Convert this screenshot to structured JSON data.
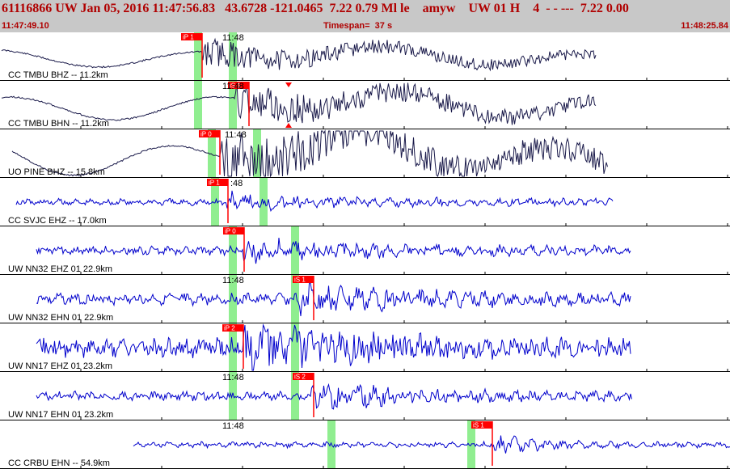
{
  "header": {
    "title": "61116866 UW Jan 05, 2016 11:47:56.83   43.6728 -121.0465  7.22 0.79 Ml le    amyw    UW 01 H    4  - - ---  7.22 0.00",
    "start_time": "11:47:49.10",
    "timespan": "Timespan=  37 s",
    "end_time": "11:48:25.84"
  },
  "colors": {
    "header_bg": "#c8c8c8",
    "header_text": "#b00000",
    "trace_black": "#1a1a4a",
    "trace_blue": "#0000cc",
    "pick_red": "#ff0000",
    "window_green": "#90ee90"
  },
  "panels": [
    {
      "label": "CC TMBU BHZ -- 11.2km",
      "time_label": "11:48",
      "trace_color": "black",
      "pick": "iP 1"
    },
    {
      "label": "CC TMBU BHN -- 11.2km",
      "time_label": "11:48",
      "trace_color": "black",
      "pick": "iS 1"
    },
    {
      "label": "UO PINE BHZ -- 15.8km",
      "time_label": "11:48",
      "trace_color": "black",
      "pick": "iP 0"
    },
    {
      "label": "CC SVJC EHZ -- 17.0km",
      "time_label": ":48",
      "trace_color": "blue",
      "pick": "iP 1"
    },
    {
      "label": "UW NN32 EHZ 01 22.9km",
      "time_label": "",
      "trace_color": "blue",
      "pick": "iP 0"
    },
    {
      "label": "UW NN32 EHN 01 22.9km",
      "time_label": "11:48",
      "trace_color": "blue",
      "pick": "iS 1"
    },
    {
      "label": "UW NN17 EHZ 01 23.2km",
      "time_label": "",
      "trace_color": "blue",
      "pick": "iP 2"
    },
    {
      "label": "UW NN17 EHN 01 23.2km",
      "time_label": "11:48",
      "trace_color": "blue",
      "pick": "iS 2"
    },
    {
      "label": "CC CRBU EHN -- 54.9km",
      "time_label": "11:48",
      "trace_color": "blue",
      "pick": "iS 1"
    }
  ]
}
